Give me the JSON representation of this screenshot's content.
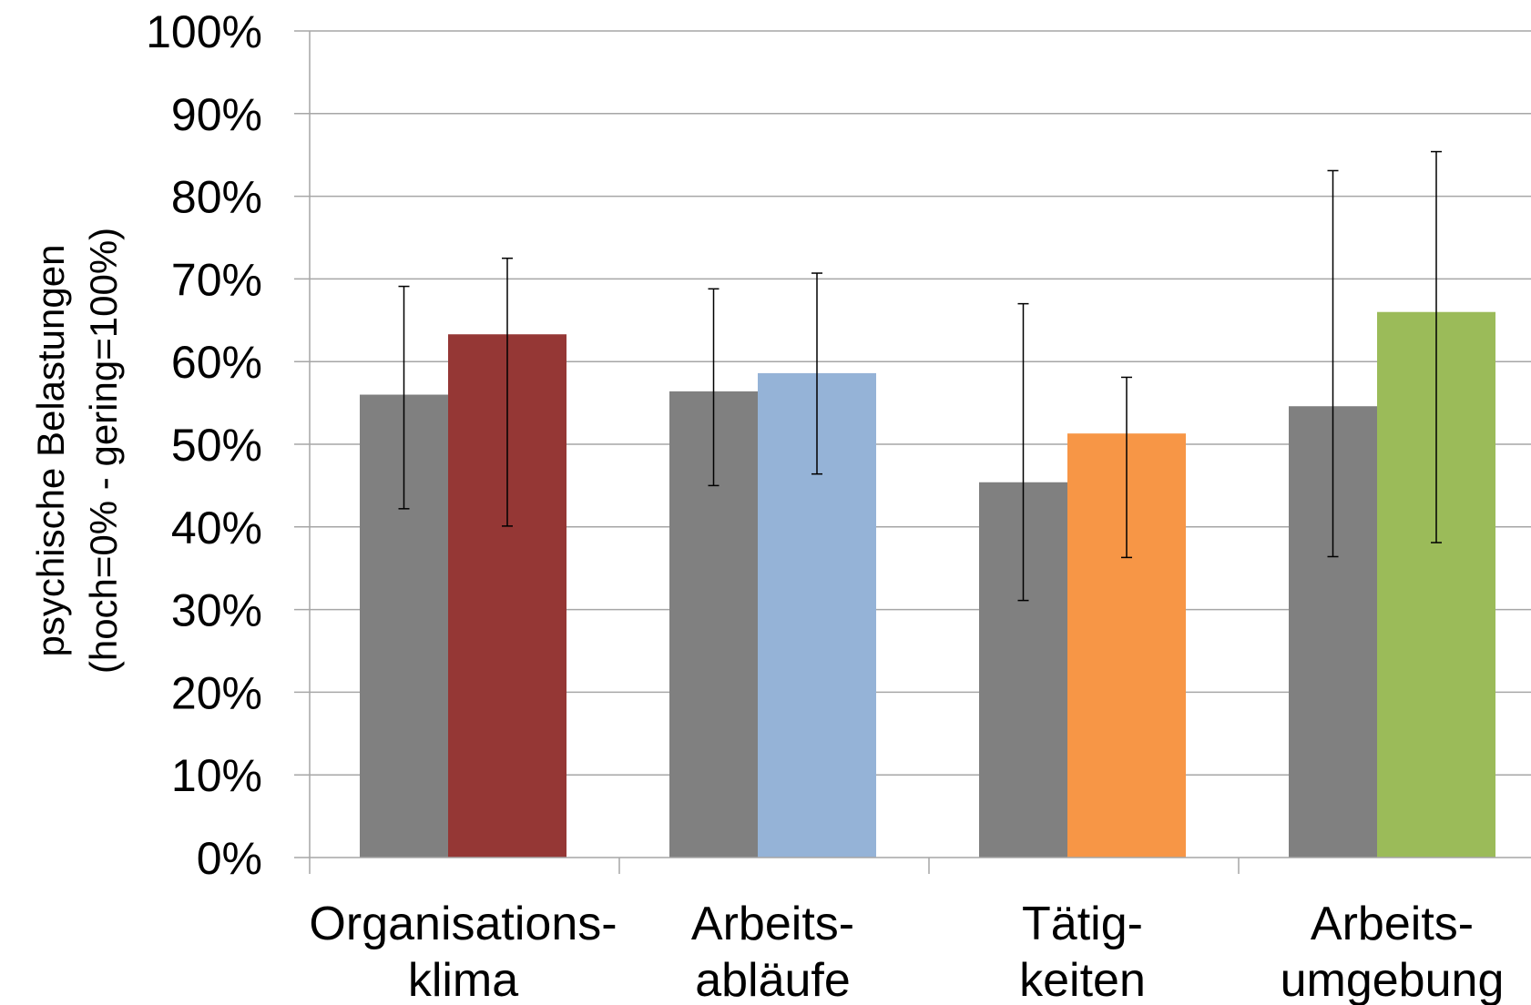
{
  "chart_data": {
    "type": "bar",
    "ylabel_line1": "psychische Belastungen",
    "ylabel_line2": "(hoch=0% - gering=100%)",
    "ylim": [
      0,
      100
    ],
    "y_ticks": [
      "0%",
      "10%",
      "20%",
      "30%",
      "40%",
      "50%",
      "60%",
      "70%",
      "80%",
      "90%",
      "100%"
    ],
    "grid": true,
    "categories": [
      {
        "line1": "Organisations-",
        "line2": "klima"
      },
      {
        "line1": "Arbeits-",
        "line2": "abläufe"
      },
      {
        "line1": "Tätig-",
        "line2": "keiten"
      },
      {
        "line1": "Arbeits-",
        "line2": "umgebung"
      }
    ],
    "groups": [
      {
        "bars": [
          {
            "value": 56.0,
            "err_low": 42.2,
            "err_high": 69.1,
            "color": "#808080"
          },
          {
            "value": 63.3,
            "err_low": 40.1,
            "err_high": 72.5,
            "color": "#953735"
          }
        ]
      },
      {
        "bars": [
          {
            "value": 56.4,
            "err_low": 45.0,
            "err_high": 68.8,
            "color": "#808080"
          },
          {
            "value": 58.6,
            "err_low": 46.4,
            "err_high": 70.7,
            "color": "#95B3D7"
          }
        ]
      },
      {
        "bars": [
          {
            "value": 45.4,
            "err_low": 31.1,
            "err_high": 67.0,
            "color": "#808080"
          },
          {
            "value": 51.3,
            "err_low": 36.3,
            "err_high": 58.1,
            "color": "#F79646"
          }
        ]
      },
      {
        "bars": [
          {
            "value": 54.6,
            "err_low": 36.4,
            "err_high": 83.1,
            "color": "#808080"
          },
          {
            "value": 66.0,
            "err_low": 38.1,
            "err_high": 85.4,
            "color": "#9BBB59"
          }
        ]
      }
    ]
  }
}
